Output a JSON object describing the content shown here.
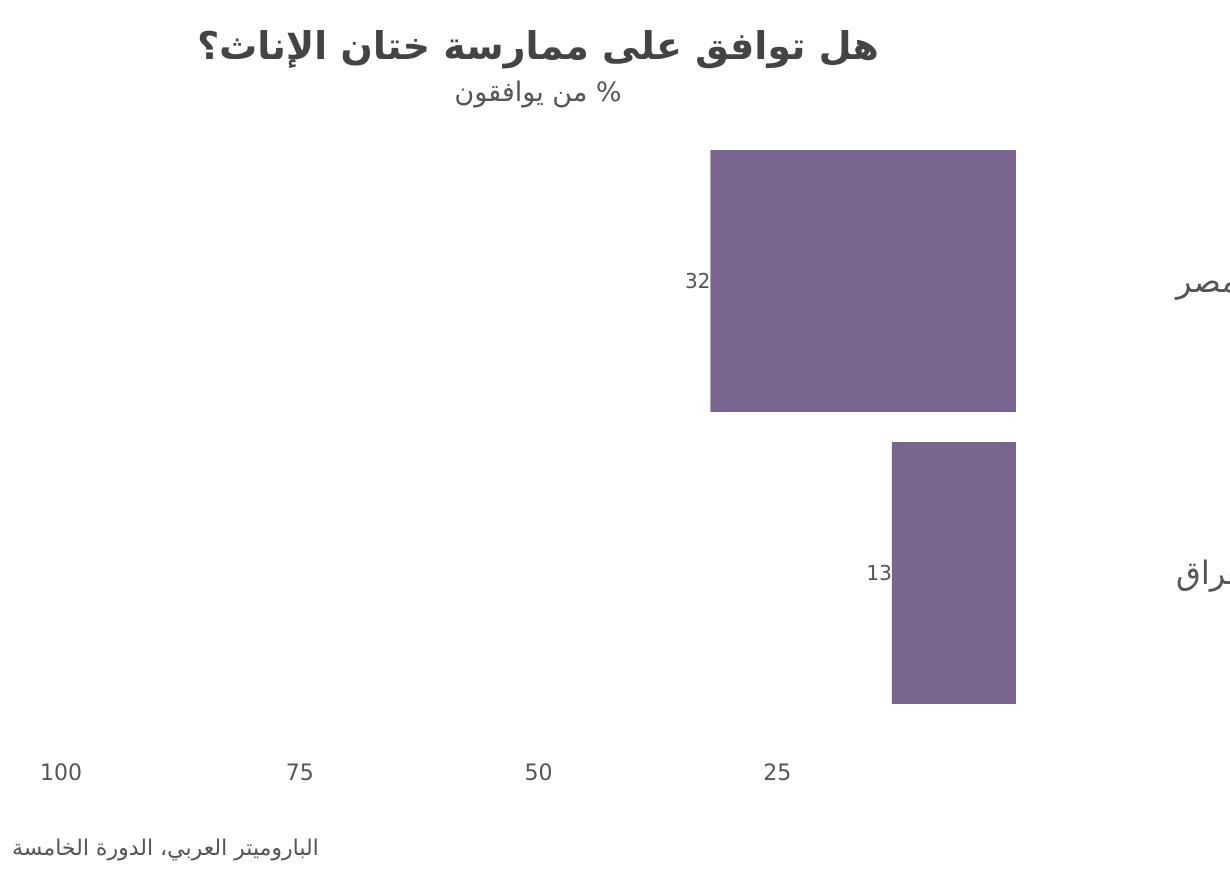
{
  "chart_data": {
    "type": "bar",
    "orientation": "horizontal",
    "direction": "rtl",
    "title": "هل توافق على ممارسة ختان الإناث؟",
    "subtitle": "% من يوافقون",
    "categories": [
      "مصر",
      "العراق"
    ],
    "values": [
      32,
      13
    ],
    "data_labels": [
      "32",
      "13"
    ],
    "x_ticks": [
      100,
      75,
      50,
      25
    ],
    "x_tick_labels": [
      "100",
      "75",
      "50",
      "25"
    ],
    "xlim": [
      0,
      100
    ],
    "grid": false,
    "legend": "none",
    "bar_color": "#7a6490",
    "source": "البارومیتر العربي، الدورة الخامسة"
  }
}
